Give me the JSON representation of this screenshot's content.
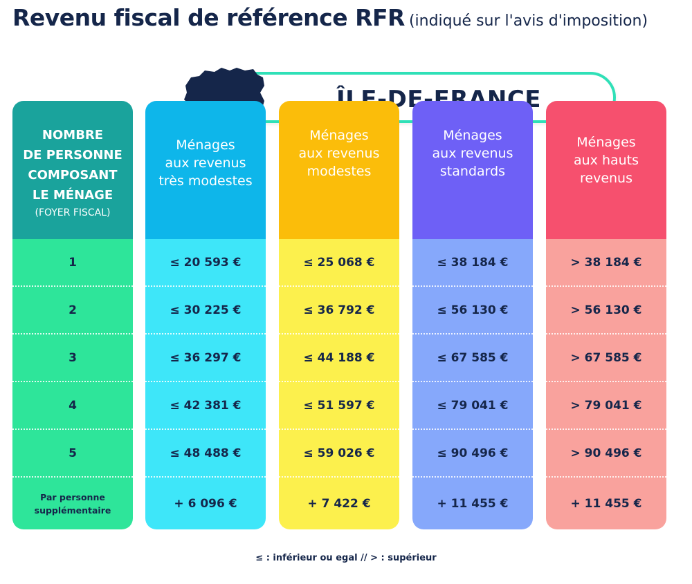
{
  "title": {
    "main": "Revenu fiscal de référence RFR",
    "sub": "(indiqué sur l'avis d'imposition)"
  },
  "region": {
    "label": "ÎLE-DE-FRANCE",
    "map_icon": "ile-de-france-map-icon"
  },
  "columns": [
    {
      "header_lines": [
        "NOMBRE",
        "DE PERSONNE",
        "COMPOSANT",
        "LE MÉNAGE"
      ],
      "header_small": "(FOYER FISCAL)",
      "cells": [
        "1",
        "2",
        "3",
        "4",
        "5"
      ],
      "last_lines": [
        "Par personne",
        "supplémentaire"
      ],
      "head_color": "#1aa39c",
      "body_color": "#2ee59a"
    },
    {
      "header_lines": [
        "Ménages",
        "aux revenus",
        "très modestes"
      ],
      "cells": [
        "≤ 20 593 €",
        "≤ 30 225 €",
        "≤ 36 297 €",
        "≤ 42 381 €",
        "≤ 48 488 €"
      ],
      "last": "+ 6 096 €",
      "head_color": "#0eb6ea",
      "body_color": "#3ee6f9"
    },
    {
      "header_lines": [
        "Ménages",
        "aux revenus",
        "modestes"
      ],
      "cells": [
        "≤ 25 068 €",
        "≤ 36 792 €",
        "≤ 44 188 €",
        "≤ 51 597 €",
        "≤ 59 026 €"
      ],
      "last": "+ 7 422 €",
      "head_color": "#fbbd0a",
      "body_color": "#fcf04d"
    },
    {
      "header_lines": [
        "Ménages",
        "aux revenus",
        "standards"
      ],
      "cells": [
        "≤ 38 184 €",
        "≤ 56 130 €",
        "≤ 67 585 €",
        "≤ 79 041 €",
        "≤ 90 496 €"
      ],
      "last": "+ 11 455 €",
      "head_color": "#6e60f6",
      "body_color": "#86a8fb"
    },
    {
      "header_lines": [
        "Ménages",
        "aux hauts",
        "revenus"
      ],
      "cells": [
        "> 38 184 €",
        "> 56 130 €",
        "> 67 585 €",
        "> 79 041 €",
        "> 90 496 €"
      ],
      "last": "+ 11 455 €",
      "head_color": "#f6506e",
      "body_color": "#f9a29d"
    }
  ],
  "footer": {
    "note": "≤ : inférieur ou egal // > : supérieur"
  }
}
